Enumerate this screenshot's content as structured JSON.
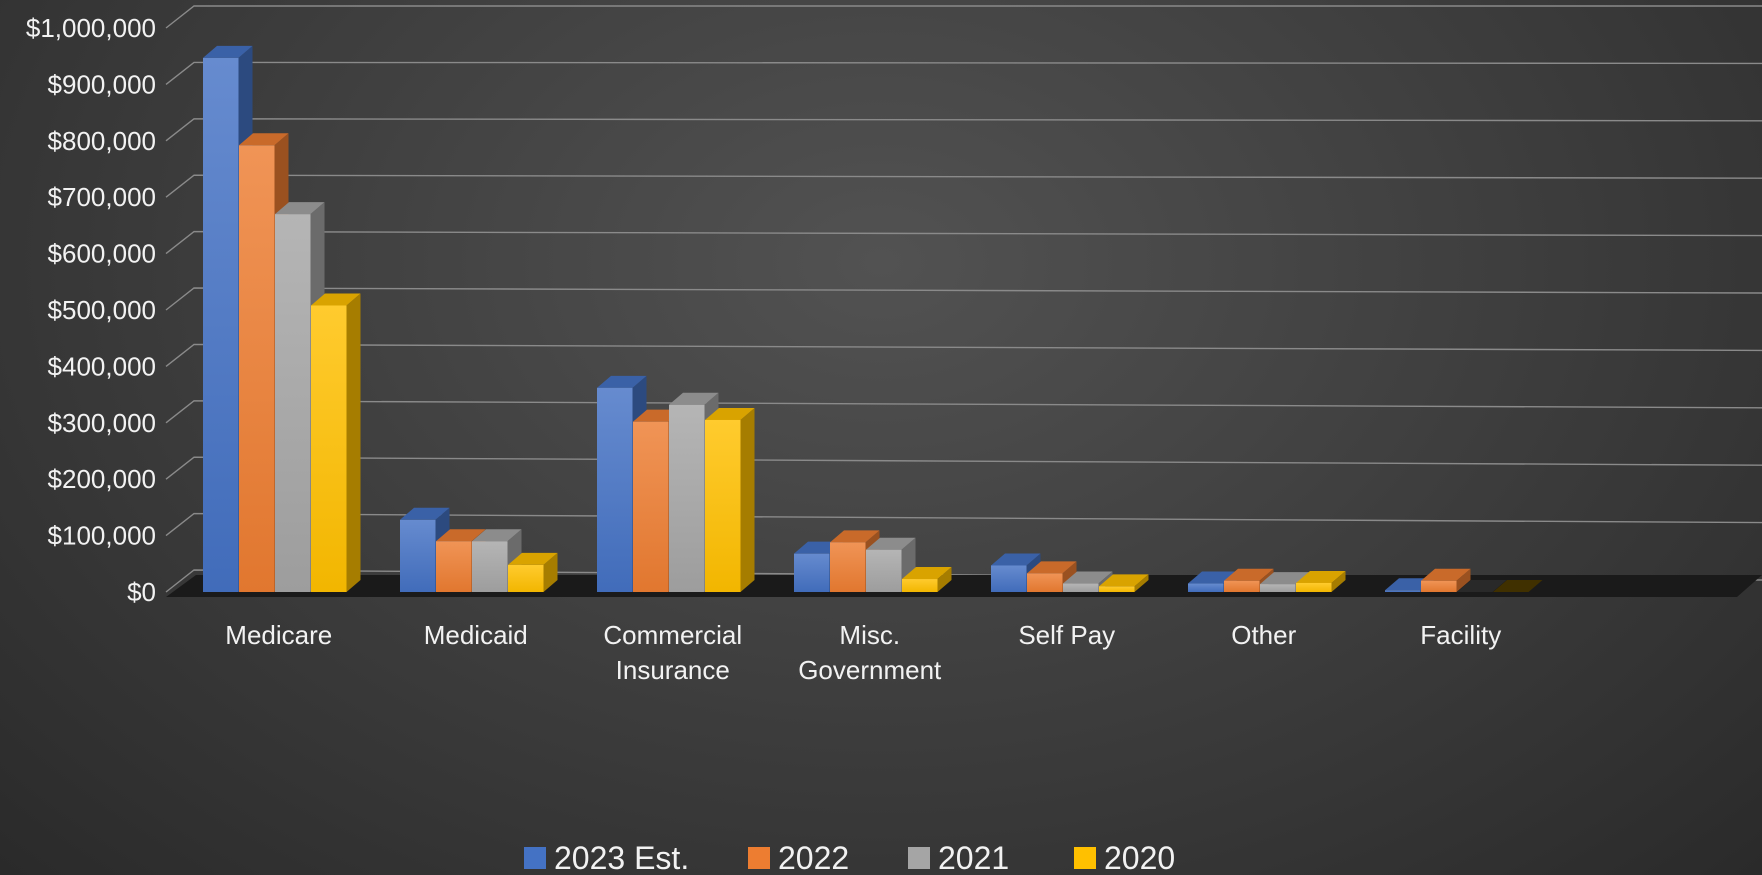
{
  "chart_data": {
    "type": "bar",
    "style": "3d-clustered-column",
    "title": "",
    "xlabel": "",
    "ylabel": "",
    "ylim": [
      0,
      1000000
    ],
    "y_ticks": [
      "$0",
      "$100,000",
      "$200,000",
      "$300,000",
      "$400,000",
      "$500,000",
      "$600,000",
      "$700,000",
      "$800,000",
      "$900,000",
      "$1,000,000"
    ],
    "categories": [
      [
        "Medicare"
      ],
      [
        "Medicaid"
      ],
      [
        "Commercial",
        "Insurance"
      ],
      [
        "Misc.",
        "Government"
      ],
      [
        "Self Pay"
      ],
      [
        "Other"
      ],
      [
        "Facility"
      ]
    ],
    "series": [
      {
        "name": "2023 Est.",
        "color": "#4472C4",
        "values": [
          947000,
          128000,
          362000,
          68000,
          47000,
          15000,
          3000
        ]
      },
      {
        "name": "2022",
        "color": "#ED7D31",
        "values": [
          792000,
          90000,
          302000,
          88000,
          33000,
          20000,
          20000
        ]
      },
      {
        "name": "2021",
        "color": "#A5A5A5",
        "values": [
          670000,
          90000,
          332000,
          75000,
          15000,
          14000,
          0
        ]
      },
      {
        "name": "2020",
        "color": "#FFC000",
        "values": [
          508000,
          48000,
          305000,
          23000,
          10000,
          16000,
          0
        ]
      }
    ],
    "grid": true,
    "legend": "bottom"
  }
}
